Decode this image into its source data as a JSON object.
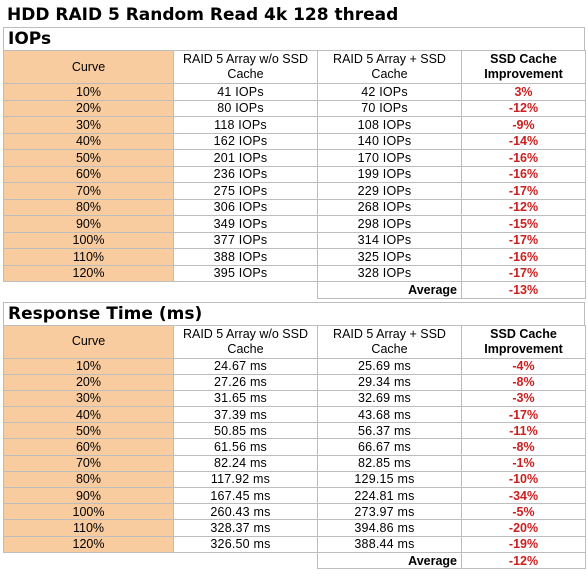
{
  "title": "HDD RAID 5 Random Read 4k 128 thread",
  "iops": {
    "section_title": "IOPs",
    "headers": [
      "Curve",
      "RAID 5 Array w/o SSD Cache",
      "RAID 5 Array + SSD Cache",
      "SSD Cache Improvement"
    ],
    "rows": [
      [
        "10%",
        "41 IOPs",
        "42 IOPs",
        "3%"
      ],
      [
        "20%",
        "80 IOPs",
        "70 IOPs",
        "-12%"
      ],
      [
        "30%",
        "118 IOPs",
        "108 IOPs",
        "-9%"
      ],
      [
        "40%",
        "162 IOPs",
        "140 IOPs",
        "-14%"
      ],
      [
        "50%",
        "201 IOPs",
        "170 IOPs",
        "-16%"
      ],
      [
        "60%",
        "236 IOPs",
        "199 IOPs",
        "-16%"
      ],
      [
        "70%",
        "275 IOPs",
        "229 IOPs",
        "-17%"
      ],
      [
        "80%",
        "306 IOPs",
        "268 IOPs",
        "-12%"
      ],
      [
        "90%",
        "349 IOPs",
        "298 IOPs",
        "-15%"
      ],
      [
        "100%",
        "377 IOPs",
        "314 IOPs",
        "-17%"
      ],
      [
        "110%",
        "388 IOPs",
        "325 IOPs",
        "-16%"
      ],
      [
        "120%",
        "395 IOPs",
        "328 IOPs",
        "-17%"
      ]
    ],
    "average_label": "Average",
    "average_value": "-13%"
  },
  "response_time": {
    "section_title": "Response Time (ms)",
    "headers": [
      "Curve",
      "RAID 5 Array w/o SSD Cache",
      "RAID 5 Array + SSD Cache",
      "SSD Cache Improvement"
    ],
    "rows": [
      [
        "10%",
        "24.67 ms",
        "25.69 ms",
        "-4%"
      ],
      [
        "20%",
        "27.26 ms",
        "29.34 ms",
        "-8%"
      ],
      [
        "30%",
        "31.65 ms",
        "32.69 ms",
        "-3%"
      ],
      [
        "40%",
        "37.39 ms",
        "43.68 ms",
        "-17%"
      ],
      [
        "50%",
        "50.85 ms",
        "56.37 ms",
        "-11%"
      ],
      [
        "60%",
        "61.56 ms",
        "66.67 ms",
        "-8%"
      ],
      [
        "70%",
        "82.24 ms",
        "82.85 ms",
        "-1%"
      ],
      [
        "80%",
        "117.92 ms",
        "129.15 ms",
        "-10%"
      ],
      [
        "90%",
        "167.45 ms",
        "224.81 ms",
        "-34%"
      ],
      [
        "100%",
        "260.43 ms",
        "273.97 ms",
        "-5%"
      ],
      [
        "110%",
        "328.37 ms",
        "394.86 ms",
        "-20%"
      ],
      [
        "120%",
        "326.50 ms",
        "388.44 ms",
        "-19%"
      ]
    ],
    "average_label": "Average",
    "average_value": "-12%"
  },
  "colors": {
    "curve_fill": "#f9cc9f",
    "improvement_text": "#cc1f1f",
    "grid": "#bdbdbd"
  }
}
